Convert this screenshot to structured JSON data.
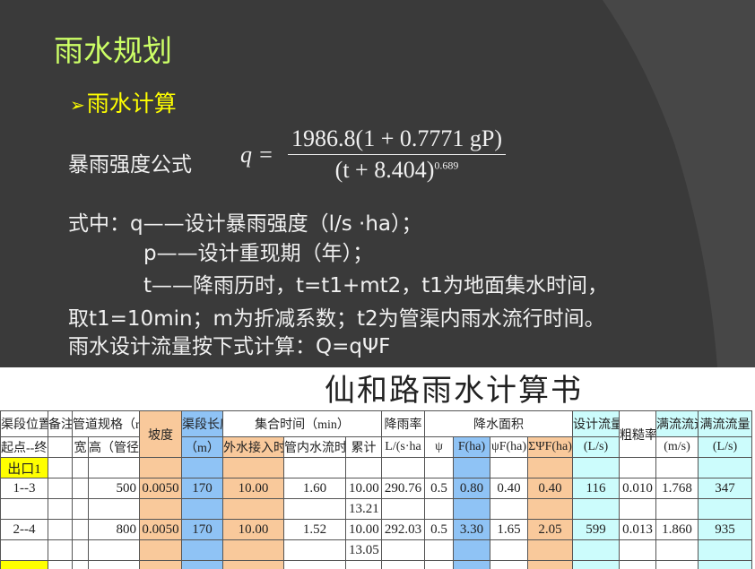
{
  "slide": {
    "title": "雨水规划",
    "bullet": "雨水计算",
    "formula_label": "暴雨强度公式",
    "formula": {
      "lhs": "q =",
      "numerator": "1986.8(1 + 0.7771 gP)",
      "denominator": "(t + 8.404)",
      "exponent": "0.689"
    },
    "lines": [
      "式中：q——设计暴雨强度（l/s ·ha）；",
      "p——设计重现期（年）；",
      "t——降雨历时，t=t1+mt2，t1为地面集水时间，",
      "取t1=10min；m为折减系数；t2为管渠内雨水流行时间。",
      "雨水设计流量按下式计算：Q=qΨF"
    ]
  },
  "sheet": {
    "title": "仙和路雨水计算书",
    "header1": [
      "渠段位置",
      "备注",
      "管道规格（mm）",
      "坡度",
      "渠段长度",
      "集合时间（min）",
      "降雨率",
      "降水面积",
      "设计流量",
      "粗糙率",
      "满流流速",
      "满流流量"
    ],
    "header2": [
      "起点--终点",
      "",
      "宽",
      "高（管径）",
      "（m）",
      "外水接入时间",
      "管内水流时间",
      "累计",
      "L/(s·ha",
      "ψ",
      "F(ha)",
      "ψF(ha)",
      "ΣΨF(ha)",
      "(L/s)",
      "(m/s)",
      "(L/s)"
    ],
    "rows": [
      [
        "出口1",
        "",
        "",
        "",
        "",
        "",
        "",
        "",
        "",
        "",
        "",
        "",
        "",
        "",
        "",
        "",
        "",
        ""
      ],
      [
        "1--3",
        "",
        "",
        "500",
        "0.0050",
        "170",
        "10.00",
        "1.60",
        "10.00",
        "290.76",
        "0.5",
        "0.80",
        "0.40",
        "0.40",
        "116",
        "0.010",
        "1.768",
        "347"
      ],
      [
        "",
        "",
        "",
        "",
        "",
        "",
        "",
        "",
        "13.21",
        "",
        "",
        "",
        "",
        "",
        "",
        "",
        "",
        ""
      ],
      [
        "2--4",
        "",
        "",
        "800",
        "0.0050",
        "170",
        "10.00",
        "1.52",
        "10.00",
        "292.03",
        "0.5",
        "3.30",
        "1.65",
        "2.05",
        "599",
        "0.013",
        "1.860",
        "935"
      ],
      [
        "",
        "",
        "",
        "",
        "",
        "",
        "",
        "",
        "13.05",
        "",
        "",
        "",
        "",
        "",
        "",
        "",
        "",
        ""
      ],
      [
        "",
        "",
        "",
        "",
        "",
        "",
        "",
        "",
        "",
        "",
        "",
        "",
        "",
        "",
        "",
        "",
        "",
        ""
      ]
    ],
    "colors": {
      "orange": "#f9c99b",
      "blue": "#8fc3f5",
      "cyan": "#ccfcfc",
      "yellow": "#ffff00"
    }
  }
}
